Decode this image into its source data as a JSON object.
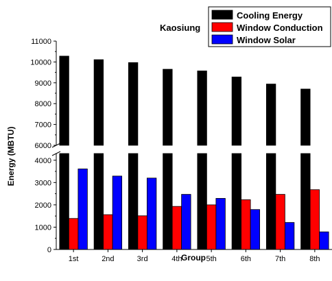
{
  "chart_data": {
    "type": "bar",
    "title": "",
    "annotation": "Kaosiung",
    "xlabel": "Group",
    "ylabel": "Energy (MBTU)",
    "categories": [
      "1st",
      "2nd",
      "3rd",
      "4th",
      "5th",
      "6th",
      "7th",
      "8th"
    ],
    "series": [
      {
        "name": "Cooling Energy",
        "color": "#000000",
        "values": [
          10280,
          10110,
          9970,
          9650,
          9570,
          9280,
          8940,
          8700
        ]
      },
      {
        "name": "Window Conduction",
        "color": "#ff0000",
        "values": [
          1390,
          1560,
          1510,
          1930,
          2000,
          2230,
          2470,
          2680
        ]
      },
      {
        "name": "Window Solar",
        "color": "#0000ff",
        "values": [
          3610,
          3290,
          3200,
          2470,
          2290,
          1790,
          1210,
          790
        ]
      }
    ],
    "y_axis_break": {
      "lower_range": [
        0,
        4300
      ],
      "upper_range": [
        6000,
        11000
      ]
    },
    "lower_yticks": [
      0,
      1000,
      2000,
      3000,
      4000
    ],
    "upper_yticks": [
      6000,
      7000,
      8000,
      9000,
      10000,
      11000
    ],
    "legend_position": "top-right",
    "grid": false
  }
}
